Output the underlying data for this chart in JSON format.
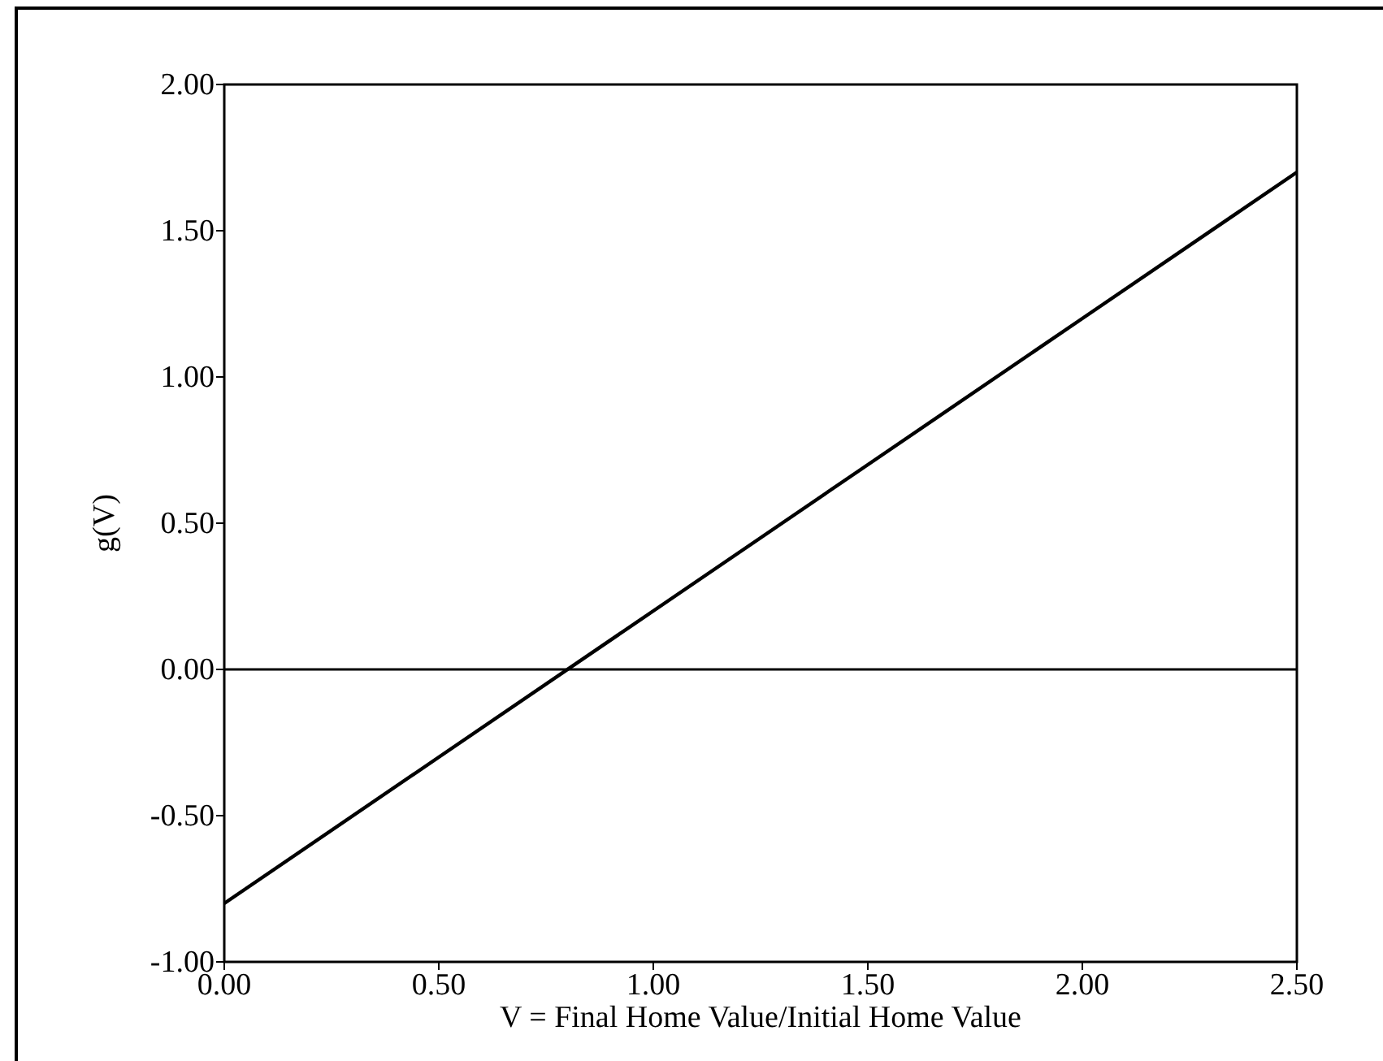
{
  "chart_data": {
    "type": "line",
    "xlabel": "V = Final Home Value/Initial Home Value",
    "ylabel": "g(V)",
    "x": [
      0,
      0.5,
      1,
      1.5,
      2,
      2.5
    ],
    "series": [
      {
        "color": "#000000",
        "values": [
          -0.8,
          -0.3,
          0.2,
          0.7,
          1.2,
          1.7
        ]
      }
    ],
    "xlim": [
      0,
      2.5
    ],
    "ylim": [
      -1,
      2
    ],
    "xticks": [
      {
        "value": 0,
        "label": "0.00"
      },
      {
        "value": 0.5,
        "label": "0.50"
      },
      {
        "value": 1,
        "label": "1.00"
      },
      {
        "value": 1.5,
        "label": "1.50"
      },
      {
        "value": 2,
        "label": "2.00"
      },
      {
        "value": 2.5,
        "label": "2.50"
      }
    ],
    "yticks": [
      {
        "value": -1,
        "label": "-1.00"
      },
      {
        "value": -0.5,
        "label": "-0.50"
      },
      {
        "value": 0,
        "label": "0.00"
      },
      {
        "value": 0.5,
        "label": "0.50"
      },
      {
        "value": 1,
        "label": "1.00"
      },
      {
        "value": 1.5,
        "label": "1.50"
      },
      {
        "value": 2,
        "label": "2.00"
      }
    ],
    "ref_lines": [
      {
        "axis": "y",
        "value": 0,
        "color": "#000000"
      }
    ],
    "grid": false
  }
}
